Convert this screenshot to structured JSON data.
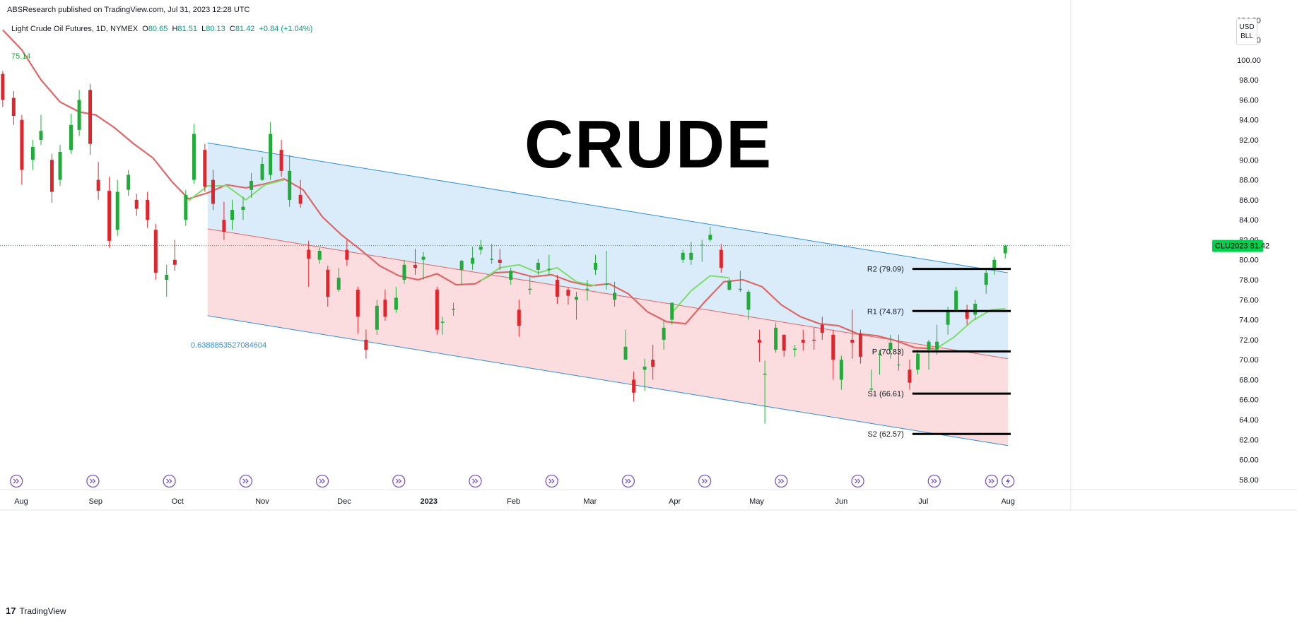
{
  "header": {
    "publisher": "ABSResearch published on TradingView.com, Jul 31, 2023 12:28 UTC",
    "symbol": "Light Crude Oil Futures, 1D, NYMEX",
    "open_label": "O",
    "open": "80.65",
    "high_label": "H",
    "high": "81.51",
    "low_label": "L",
    "low": "80.13",
    "close_label": "C",
    "close": "81.42",
    "change": "+0.84 (+1.04%)",
    "ma_value": "75.14",
    "currency": "USD",
    "unit": "BLL"
  },
  "title": "CRUDE",
  "fib_label": "0.6388853527084604",
  "footer": {
    "brand": "TradingView",
    "logo": "17"
  },
  "colors": {
    "up": "#22ab3a",
    "down": "#e0262d",
    "ma_red": "#e06666",
    "ma_green": "#7ddc6a",
    "channel_line": "#2e8fd8",
    "channel_upper_fill": "#d6eaf8",
    "channel_lower_fill": "#fbd9db",
    "axis_text": "#131722",
    "event_icon": "#7e57c2",
    "price_tag": "#00d04b"
  },
  "chart_data": {
    "type": "candlestick",
    "symbol": "CLU2023",
    "last_price": 81.42,
    "ylim": [
      57,
      106
    ],
    "y_ticks": [
      58,
      60,
      62,
      64,
      66,
      68,
      70,
      72,
      74,
      76,
      78,
      80,
      82,
      84,
      86,
      88,
      90,
      92,
      94,
      96,
      98,
      100,
      102,
      104
    ],
    "y_tick_labels": [
      "58.00",
      "60.00",
      "62.00",
      "64.00",
      "66.00",
      "68.00",
      "70.00",
      "72.00",
      "74.00",
      "76.00",
      "78.00",
      "80.00",
      "82.00",
      "84.00",
      "86.00",
      "88.00",
      "90.00",
      "92.00",
      "94.00",
      "96.00",
      "98.00",
      "100.00",
      "102.00",
      "104.00"
    ],
    "x_axis_labels": [
      "Aug",
      "Sep",
      "Oct",
      "Nov",
      "Dec",
      "2023",
      "Feb",
      "Mar",
      "Apr",
      "May",
      "Jun",
      "Jul",
      "Aug"
    ],
    "x_axis_dates": [
      "2022-08-01",
      "2022-09-01",
      "2022-10-01",
      "2022-11-01",
      "2022-12-01",
      "2023-01-01",
      "2023-02-01",
      "2023-03-01",
      "2023-04-01",
      "2023-05-01",
      "2023-06-01",
      "2023-07-01",
      "2023-08-01"
    ],
    "candles": [
      [
        "2022-07-29",
        98.6,
        96.0,
        98.9,
        95.3
      ],
      [
        "2022-08-02",
        96.2,
        94.4,
        96.9,
        93.5
      ],
      [
        "2022-08-05",
        94.0,
        89.0,
        94.5,
        87.5
      ],
      [
        "2022-08-09",
        90.0,
        91.3,
        92.0,
        89.0
      ],
      [
        "2022-08-12",
        92.0,
        92.9,
        94.5,
        91.5
      ],
      [
        "2022-08-16",
        90.0,
        86.8,
        90.6,
        85.7
      ],
      [
        "2022-08-19",
        88.0,
        90.8,
        91.5,
        87.4
      ],
      [
        "2022-08-23",
        91.0,
        93.5,
        94.6,
        90.6
      ],
      [
        "2022-08-26",
        93.0,
        96.0,
        97.0,
        92.4
      ],
      [
        "2022-08-30",
        97.0,
        91.6,
        97.6,
        90.5
      ],
      [
        "2022-09-02",
        88.0,
        86.9,
        89.8,
        86.0
      ],
      [
        "2022-09-06",
        86.9,
        81.9,
        88.3,
        81.2
      ],
      [
        "2022-09-09",
        83.0,
        86.8,
        88.0,
        82.4
      ],
      [
        "2022-09-13",
        87.0,
        88.5,
        89.0,
        86.4
      ],
      [
        "2022-09-16",
        86.0,
        85.1,
        86.6,
        84.4
      ],
      [
        "2022-09-20",
        86.0,
        84.0,
        86.8,
        83.2
      ],
      [
        "2022-09-23",
        83.0,
        78.7,
        83.6,
        78.0
      ],
      [
        "2022-09-27",
        78.0,
        78.5,
        79.5,
        76.3
      ],
      [
        "2022-09-30",
        80.0,
        79.5,
        82.0,
        78.9
      ],
      [
        "2022-10-04",
        84.0,
        86.5,
        87.0,
        83.4
      ],
      [
        "2022-10-07",
        88.0,
        92.6,
        93.6,
        87.6
      ],
      [
        "2022-10-11",
        91.0,
        87.3,
        91.6,
        86.8
      ],
      [
        "2022-10-14",
        88.0,
        85.6,
        89.0,
        85.0
      ],
      [
        "2022-10-18",
        84.0,
        82.8,
        85.8,
        82.0
      ],
      [
        "2022-10-21",
        84.0,
        85.0,
        86.0,
        83.0
      ],
      [
        "2022-10-25",
        85.0,
        85.3,
        86.3,
        84.0
      ],
      [
        "2022-10-28",
        87.0,
        87.9,
        88.7,
        86.2
      ],
      [
        "2022-11-01",
        88.0,
        89.6,
        90.3,
        87.9
      ],
      [
        "2022-11-04",
        88.5,
        92.6,
        93.8,
        88.0
      ],
      [
        "2022-11-08",
        91.0,
        88.9,
        92.0,
        88.3
      ],
      [
        "2022-11-11",
        86.0,
        88.9,
        90.5,
        85.3
      ],
      [
        "2022-11-15",
        86.5,
        85.6,
        88.0,
        85.2
      ],
      [
        "2022-11-18",
        81.0,
        80.1,
        81.9,
        77.3
      ],
      [
        "2022-11-22",
        80.0,
        80.9,
        81.2,
        79.6
      ],
      [
        "2022-11-25",
        79.0,
        76.3,
        79.4,
        75.3
      ],
      [
        "2022-11-29",
        77.0,
        78.2,
        79.2,
        76.8
      ],
      [
        "2022-12-02",
        81.0,
        80.0,
        82.0,
        79.4
      ],
      [
        "2022-12-06",
        77.0,
        74.3,
        77.3,
        72.6
      ],
      [
        "2022-12-09",
        72.0,
        71.0,
        73.0,
        70.1
      ],
      [
        "2022-12-13",
        73.0,
        75.4,
        76.0,
        72.5
      ],
      [
        "2022-12-16",
        76.0,
        74.3,
        77.0,
        73.9
      ],
      [
        "2022-12-20",
        75.0,
        76.2,
        77.3,
        74.7
      ],
      [
        "2022-12-23",
        78.0,
        79.5,
        80.0,
        77.6
      ],
      [
        "2022-12-27",
        79.5,
        79.2,
        81.1,
        78.5
      ],
      [
        "2022-12-30",
        80.0,
        80.3,
        80.8,
        78.0
      ],
      [
        "2023-01-04",
        77.0,
        73.0,
        77.3,
        72.5
      ],
      [
        "2023-01-06",
        73.7,
        73.8,
        74.3,
        72.5
      ],
      [
        "2023-01-10",
        75.0,
        75.1,
        75.7,
        74.4
      ],
      [
        "2023-01-13",
        79.0,
        79.9,
        80.0,
        77.5
      ],
      [
        "2023-01-17",
        79.6,
        80.2,
        81.3,
        79.0
      ],
      [
        "2023-01-20",
        81.0,
        81.3,
        82.0,
        80.5
      ],
      [
        "2023-01-24",
        80.0,
        80.1,
        81.6,
        79.6
      ],
      [
        "2023-01-27",
        80.0,
        79.7,
        81.1,
        79.0
      ],
      [
        "2023-01-31",
        78.0,
        78.9,
        79.2,
        77.5
      ],
      [
        "2023-02-03",
        75.0,
        73.4,
        76.0,
        72.3
      ],
      [
        "2023-02-07",
        77.0,
        77.1,
        78.3,
        76.5
      ],
      [
        "2023-02-10",
        79.0,
        79.7,
        80.1,
        78.5
      ],
      [
        "2023-02-14",
        79.0,
        79.1,
        80.5,
        78.4
      ],
      [
        "2023-02-17",
        78.0,
        76.3,
        78.5,
        75.6
      ],
      [
        "2023-02-21",
        77.0,
        76.4,
        77.3,
        75.5
      ],
      [
        "2023-02-24",
        76.0,
        76.3,
        76.8,
        74.0
      ],
      [
        "2023-02-28",
        77.0,
        77.1,
        78.0,
        75.9
      ],
      [
        "2023-03-03",
        79.0,
        79.7,
        80.5,
        78.5
      ],
      [
        "2023-03-07",
        77.5,
        77.6,
        80.9,
        77.0
      ],
      [
        "2023-03-10",
        76.0,
        76.7,
        77.8,
        75.3
      ],
      [
        "2023-03-14",
        70.0,
        71.3,
        73.0,
        70.0
      ],
      [
        "2023-03-17",
        68.0,
        66.7,
        68.8,
        65.8
      ],
      [
        "2023-03-21",
        69.0,
        69.3,
        70.1,
        66.9
      ],
      [
        "2023-03-24",
        70.0,
        69.3,
        71.5,
        68.0
      ],
      [
        "2023-03-28",
        72.0,
        73.2,
        74.0,
        71.0
      ],
      [
        "2023-03-31",
        74.0,
        75.7,
        75.7,
        73.5
      ],
      [
        "2023-04-04",
        80.0,
        80.7,
        81.0,
        79.7
      ],
      [
        "2023-04-07",
        80.0,
        80.7,
        81.8,
        79.5
      ],
      [
        "2023-04-11",
        81.5,
        81.5,
        82.0,
        79.8
      ],
      [
        "2023-04-14",
        82.0,
        82.5,
        83.3,
        81.8
      ],
      [
        "2023-04-18",
        81.0,
        79.2,
        81.6,
        78.7
      ],
      [
        "2023-04-21",
        77.0,
        77.9,
        78.1,
        76.9
      ],
      [
        "2023-04-25",
        77.0,
        77.1,
        78.9,
        76.8
      ],
      [
        "2023-04-28",
        75.0,
        76.8,
        77.0,
        74.0
      ],
      [
        "2023-05-02",
        72.0,
        71.7,
        73.0,
        69.8
      ],
      [
        "2023-05-04",
        68.5,
        68.6,
        69.9,
        63.6
      ],
      [
        "2023-05-08",
        71.0,
        73.2,
        73.7,
        70.7
      ],
      [
        "2023-05-11",
        72.5,
        70.9,
        72.5,
        70.3
      ],
      [
        "2023-05-15",
        71.0,
        71.1,
        71.5,
        70.3
      ],
      [
        "2023-05-18",
        72.0,
        71.7,
        73.0,
        70.9
      ],
      [
        "2023-05-22",
        72.0,
        71.9,
        73.2,
        71.0
      ],
      [
        "2023-05-25",
        73.5,
        72.7,
        74.3,
        72.0
      ],
      [
        "2023-05-29",
        72.5,
        70.0,
        73.0,
        68.0
      ],
      [
        "2023-06-01",
        68.0,
        70.0,
        70.4,
        67.0
      ],
      [
        "2023-06-05",
        72.0,
        71.7,
        75.0,
        70.1
      ],
      [
        "2023-06-08",
        72.6,
        70.3,
        73.0,
        69.6
      ],
      [
        "2023-06-12",
        67.0,
        67.1,
        69.0,
        66.9
      ],
      [
        "2023-06-15",
        70.5,
        70.6,
        71.0,
        68.5
      ],
      [
        "2023-06-19",
        71.0,
        71.7,
        72.5,
        70.1
      ],
      [
        "2023-06-22",
        69.5,
        69.5,
        72.5,
        68.9
      ],
      [
        "2023-06-26",
        69.0,
        67.7,
        70.0,
        67.0
      ],
      [
        "2023-06-29",
        69.0,
        70.6,
        71.0,
        68.5
      ],
      [
        "2023-07-03",
        71.0,
        71.8,
        72.0,
        69.0
      ],
      [
        "2023-07-06",
        71.0,
        71.8,
        73.5,
        70.5
      ],
      [
        "2023-07-10",
        73.5,
        74.8,
        75.3,
        72.5
      ],
      [
        "2023-07-13",
        75.0,
        76.9,
        77.3,
        74.8
      ],
      [
        "2023-07-17",
        75.0,
        74.1,
        75.5,
        73.5
      ],
      [
        "2023-07-20",
        74.5,
        75.6,
        76.0,
        74.0
      ],
      [
        "2023-07-24",
        77.5,
        78.7,
        79.0,
        76.6
      ],
      [
        "2023-07-27",
        79.0,
        80.0,
        80.3,
        78.5
      ],
      [
        "2023-07-31",
        80.65,
        81.42,
        81.51,
        80.13
      ]
    ],
    "channel": {
      "upper_line": [
        [
          "2022-10-12",
          91.7
        ],
        [
          "2023-08-01",
          78.7
        ]
      ],
      "middle_line": [
        [
          "2022-10-12",
          83.1
        ],
        [
          "2023-08-01",
          70.1
        ]
      ],
      "lower_line": [
        [
          "2022-10-12",
          74.4
        ],
        [
          "2023-08-01",
          61.4
        ]
      ],
      "fib_level": "0.6388853527084604"
    },
    "moving_average_red": [
      [
        "2022-07-29",
        103.0
      ],
      [
        "2022-08-05",
        101.0
      ],
      [
        "2022-08-12",
        98.0
      ],
      [
        "2022-08-19",
        95.8
      ],
      [
        "2022-08-26",
        94.8
      ],
      [
        "2022-09-01",
        94.5
      ],
      [
        "2022-09-08",
        93.2
      ],
      [
        "2022-09-15",
        91.6
      ],
      [
        "2022-09-22",
        90.2
      ],
      [
        "2022-09-29",
        87.8
      ],
      [
        "2022-10-05",
        86.1
      ],
      [
        "2022-10-12",
        86.7
      ],
      [
        "2022-10-19",
        87.5
      ],
      [
        "2022-10-26",
        87.2
      ],
      [
        "2022-11-02",
        87.6
      ],
      [
        "2022-11-09",
        88.1
      ],
      [
        "2022-11-16",
        87.0
      ],
      [
        "2022-11-23",
        84.3
      ],
      [
        "2022-11-30",
        82.5
      ],
      [
        "2022-12-07",
        81.0
      ],
      [
        "2022-12-14",
        79.4
      ],
      [
        "2022-12-21",
        78.4
      ],
      [
        "2022-12-28",
        78.0
      ],
      [
        "2023-01-04",
        78.6
      ],
      [
        "2023-01-11",
        77.5
      ],
      [
        "2023-01-18",
        77.6
      ],
      [
        "2023-01-25",
        78.7
      ],
      [
        "2023-02-01",
        78.8
      ],
      [
        "2023-02-08",
        78.3
      ],
      [
        "2023-02-15",
        78.5
      ],
      [
        "2023-02-22",
        77.8
      ],
      [
        "2023-03-01",
        77.4
      ],
      [
        "2023-03-08",
        77.6
      ],
      [
        "2023-03-15",
        76.6
      ],
      [
        "2023-03-22",
        74.8
      ],
      [
        "2023-03-29",
        73.8
      ],
      [
        "2023-04-05",
        73.6
      ],
      [
        "2023-04-12",
        75.8
      ],
      [
        "2023-04-19",
        77.8
      ],
      [
        "2023-04-26",
        78.0
      ],
      [
        "2023-05-03",
        77.3
      ],
      [
        "2023-05-10",
        75.5
      ],
      [
        "2023-05-17",
        74.3
      ],
      [
        "2023-05-24",
        73.6
      ],
      [
        "2023-05-31",
        73.4
      ],
      [
        "2023-06-07",
        72.6
      ],
      [
        "2023-06-14",
        72.4
      ],
      [
        "2023-06-21",
        71.9
      ],
      [
        "2023-06-28",
        71.2
      ],
      [
        "2023-07-05",
        71.1
      ]
    ],
    "moving_average_green": [
      [
        "2022-10-05",
        85.9
      ],
      [
        "2022-10-12",
        87.4
      ],
      [
        "2022-10-19",
        87.4
      ],
      [
        "2022-10-26",
        86.0
      ],
      [
        "2022-11-02",
        87.5
      ],
      [
        "2022-11-09",
        88.0
      ],
      [
        "2023-01-20",
        77.9
      ],
      [
        "2023-01-27",
        79.2
      ],
      [
        "2023-02-03",
        79.5
      ],
      [
        "2023-02-10",
        78.7
      ],
      [
        "2023-02-17",
        79.2
      ],
      [
        "2023-02-24",
        77.8
      ],
      [
        "2023-03-03",
        77.4
      ],
      [
        "2023-03-31",
        74.7
      ],
      [
        "2023-04-07",
        76.9
      ],
      [
        "2023-04-14",
        78.4
      ],
      [
        "2023-04-21",
        78.2
      ],
      [
        "2023-07-05",
        71.0
      ],
      [
        "2023-07-12",
        72.2
      ],
      [
        "2023-07-19",
        73.9
      ],
      [
        "2023-07-26",
        75.0
      ],
      [
        "2023-07-31",
        75.1
      ]
    ],
    "levels": [
      {
        "label": "R2 (79.09)",
        "value": 79.09
      },
      {
        "label": "R1 (74.87)",
        "value": 74.87
      },
      {
        "label": "P (70.83)",
        "value": 70.83
      },
      {
        "label": "S1 (66.61)",
        "value": 66.61
      },
      {
        "label": "S2 (62.57)",
        "value": 62.57
      }
    ],
    "events": [
      "2022-08-03",
      "2022-08-31",
      "2022-09-28",
      "2022-10-26",
      "2022-11-23",
      "2022-12-21",
      "2023-01-18",
      "2023-02-15",
      "2023-03-15",
      "2023-04-12",
      "2023-05-10",
      "2023-06-07",
      "2023-07-05",
      "2023-07-26",
      "2023-08-01"
    ]
  }
}
